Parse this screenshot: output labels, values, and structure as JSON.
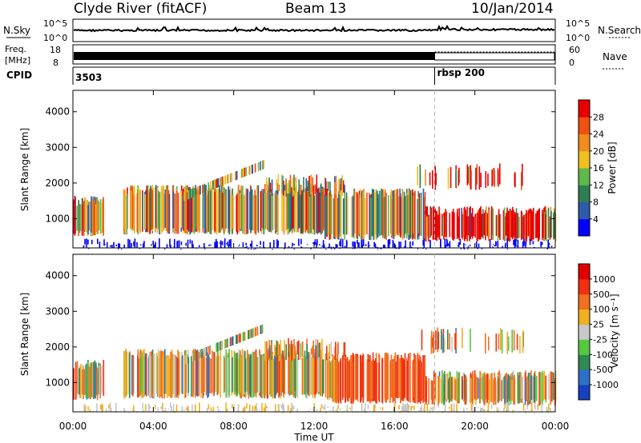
{
  "header": {
    "station": "Clyde River (fitACF)",
    "beam": "Beam 13",
    "date": "10/Jan/2014"
  },
  "top_panels": {
    "nsky_label": "N.Sky",
    "nsky_ticks": [
      "10^5",
      "10^0"
    ],
    "nsearch_label": "N.Search",
    "nsearch_ticks": [
      "10^5",
      "10^0"
    ],
    "freq_label_1": "Freq.",
    "freq_label_2": "[MHz]",
    "freq_ticks": [
      "18",
      "8"
    ],
    "nave_label": "Nave",
    "nave_ticks": [
      "60",
      "0"
    ],
    "cpid_label": "CPID",
    "cpid_1": "3503",
    "cpid_2": "rbsp 200",
    "cpid_change_hour": 18.0
  },
  "chart_data": [
    {
      "type": "heatmap",
      "name": "power",
      "xlabel": "Time UT",
      "ylabel": "Slant Range [km]",
      "xlim": [
        0,
        24
      ],
      "ylim": [
        180,
        4600
      ],
      "x_ticks": [
        "00:00",
        "04:00",
        "08:00",
        "12:00",
        "16:00",
        "20:00",
        "00:00"
      ],
      "y_ticks": [
        1000,
        2000,
        3000,
        4000
      ],
      "colorbar": {
        "label": "Power [dB]",
        "ticks": [
          "4",
          "8",
          "12",
          "16",
          "20",
          "24",
          "28"
        ],
        "colors": [
          "#0000ff",
          "#2e5aa8",
          "#2f7d55",
          "#5fb84a",
          "#f0c020",
          "#f08c20",
          "#f05010",
          "#e80000"
        ]
      }
    },
    {
      "type": "heatmap",
      "name": "velocity",
      "xlabel": "Time UT",
      "ylabel": "Slant Range [km]",
      "xlim": [
        0,
        24
      ],
      "ylim": [
        180,
        4600
      ],
      "x_ticks": [
        "00:00",
        "04:00",
        "08:00",
        "12:00",
        "16:00",
        "20:00",
        "00:00"
      ],
      "y_ticks": [
        1000,
        2000,
        3000,
        4000
      ],
      "colorbar": {
        "label": "Velocity [m s⁻¹]",
        "ticks": [
          "1000",
          "500",
          "100",
          "25",
          "-25",
          "-100",
          "-500",
          "-1000"
        ],
        "colors": [
          "#1540c0",
          "#2e70c8",
          "#2f8a55",
          "#55c840",
          "#c8c8c8",
          "#f0b020",
          "#f07020",
          "#f03010",
          "#e00000"
        ]
      }
    }
  ]
}
